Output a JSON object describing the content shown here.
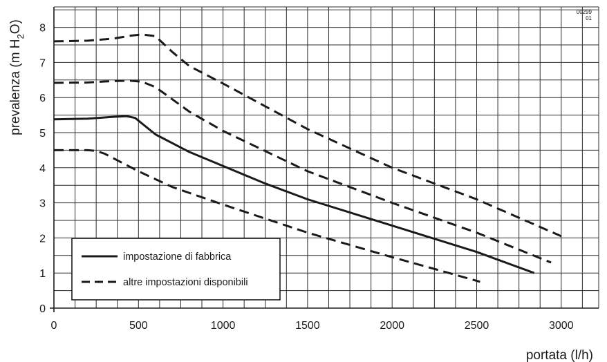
{
  "chart_data": {
    "type": "line",
    "xlabel": "portata (l/h)",
    "ylabel_prefix": "prevalenza (m H",
    "ylabel_sub": "2",
    "ylabel_suffix": "O)",
    "code_line1": "00299",
    "code_line2": "01",
    "xlim": [
      0,
      3000
    ],
    "ylim": [
      0,
      8
    ],
    "x_ticks": [
      0,
      500,
      1000,
      1500,
      2000,
      2500,
      3000
    ],
    "y_ticks": [
      0,
      1,
      2,
      3,
      4,
      5,
      6,
      7,
      8
    ],
    "x_tick_labels": [
      "0",
      "500",
      "1000",
      "1500",
      "2000",
      "2500",
      "3000"
    ],
    "y_tick_labels": [
      "0",
      "1",
      "2",
      "3",
      "4",
      "5",
      "6",
      "7",
      "8"
    ],
    "grid": true,
    "legend_position": "bottom-left",
    "legend": [
      {
        "label": "impostazione di fabbrica",
        "style": "solid"
      },
      {
        "label": "altre impostazioni disponibili",
        "style": "dashed"
      }
    ],
    "series": [
      {
        "style": "dashed",
        "points": [
          [
            0,
            7.6
          ],
          [
            200,
            7.62
          ],
          [
            350,
            7.68
          ],
          [
            450,
            7.76
          ],
          [
            520,
            7.8
          ],
          [
            600,
            7.75
          ],
          [
            700,
            7.3
          ],
          [
            800,
            6.9
          ],
          [
            1000,
            6.4
          ],
          [
            1500,
            5.1
          ],
          [
            2000,
            4.0
          ],
          [
            2500,
            3.1
          ],
          [
            3000,
            2.05
          ]
        ]
      },
      {
        "style": "dashed",
        "points": [
          [
            0,
            6.42
          ],
          [
            200,
            6.43
          ],
          [
            350,
            6.47
          ],
          [
            450,
            6.48
          ],
          [
            520,
            6.45
          ],
          [
            600,
            6.3
          ],
          [
            800,
            5.6
          ],
          [
            1000,
            5.05
          ],
          [
            1500,
            3.9
          ],
          [
            2000,
            3.0
          ],
          [
            2500,
            2.15
          ],
          [
            2940,
            1.3
          ]
        ]
      },
      {
        "style": "solid",
        "points": [
          [
            0,
            5.38
          ],
          [
            200,
            5.4
          ],
          [
            350,
            5.45
          ],
          [
            430,
            5.47
          ],
          [
            480,
            5.42
          ],
          [
            600,
            4.95
          ],
          [
            800,
            4.45
          ],
          [
            1000,
            4.05
          ],
          [
            1250,
            3.55
          ],
          [
            1500,
            3.1
          ],
          [
            2000,
            2.35
          ],
          [
            2500,
            1.6
          ],
          [
            2840,
            1.0
          ]
        ]
      },
      {
        "style": "dashed",
        "points": [
          [
            0,
            4.5
          ],
          [
            200,
            4.5
          ],
          [
            250,
            4.48
          ],
          [
            300,
            4.4
          ],
          [
            400,
            4.15
          ],
          [
            500,
            3.9
          ],
          [
            700,
            3.45
          ],
          [
            1000,
            2.95
          ],
          [
            1500,
            2.15
          ],
          [
            2000,
            1.45
          ],
          [
            2300,
            1.05
          ],
          [
            2520,
            0.75
          ]
        ]
      }
    ]
  }
}
